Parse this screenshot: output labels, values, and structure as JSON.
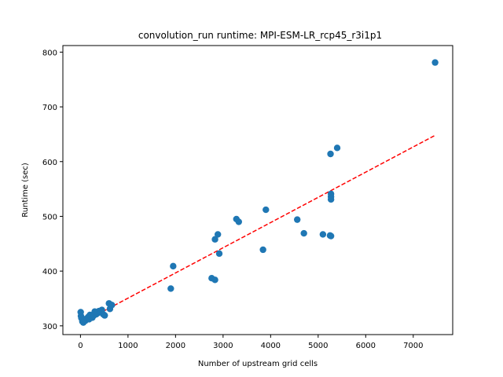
{
  "chart_data": {
    "type": "scatter",
    "title": "convolution_run runtime: MPI-ESM-LR_rcp45_r3i1p1",
    "xlabel": "Number of upstream grid cells",
    "ylabel": "Runtime (sec)",
    "xlim": [
      -370,
      7830
    ],
    "ylim": [
      284,
      812
    ],
    "xticks": [
      0,
      1000,
      2000,
      3000,
      4000,
      5000,
      6000,
      7000
    ],
    "yticks": [
      300,
      400,
      500,
      600,
      700,
      800
    ],
    "grid": false,
    "colors": {
      "points": "#1f77b4",
      "fit": "#ff0000"
    },
    "points": [
      {
        "x": 5,
        "y": 325
      },
      {
        "x": 10,
        "y": 318
      },
      {
        "x": 20,
        "y": 314
      },
      {
        "x": 40,
        "y": 308
      },
      {
        "x": 60,
        "y": 306
      },
      {
        "x": 80,
        "y": 312
      },
      {
        "x": 100,
        "y": 309
      },
      {
        "x": 130,
        "y": 313
      },
      {
        "x": 160,
        "y": 316
      },
      {
        "x": 180,
        "y": 312
      },
      {
        "x": 200,
        "y": 320
      },
      {
        "x": 220,
        "y": 317
      },
      {
        "x": 250,
        "y": 315
      },
      {
        "x": 280,
        "y": 319
      },
      {
        "x": 300,
        "y": 326
      },
      {
        "x": 330,
        "y": 321
      },
      {
        "x": 360,
        "y": 323
      },
      {
        "x": 390,
        "y": 327
      },
      {
        "x": 420,
        "y": 325
      },
      {
        "x": 450,
        "y": 329
      },
      {
        "x": 480,
        "y": 321
      },
      {
        "x": 510,
        "y": 319
      },
      {
        "x": 600,
        "y": 341
      },
      {
        "x": 620,
        "y": 331
      },
      {
        "x": 660,
        "y": 338
      },
      {
        "x": 1900,
        "y": 368
      },
      {
        "x": 1950,
        "y": 409
      },
      {
        "x": 2760,
        "y": 387
      },
      {
        "x": 2830,
        "y": 384
      },
      {
        "x": 2830,
        "y": 458
      },
      {
        "x": 2890,
        "y": 467
      },
      {
        "x": 2920,
        "y": 432
      },
      {
        "x": 3280,
        "y": 495
      },
      {
        "x": 3330,
        "y": 490
      },
      {
        "x": 3840,
        "y": 439
      },
      {
        "x": 3900,
        "y": 512
      },
      {
        "x": 4560,
        "y": 494
      },
      {
        "x": 4700,
        "y": 469
      },
      {
        "x": 5100,
        "y": 467
      },
      {
        "x": 5250,
        "y": 465
      },
      {
        "x": 5270,
        "y": 464
      },
      {
        "x": 5260,
        "y": 614
      },
      {
        "x": 5270,
        "y": 541
      },
      {
        "x": 5270,
        "y": 536
      },
      {
        "x": 5270,
        "y": 531
      },
      {
        "x": 5400,
        "y": 625
      },
      {
        "x": 7460,
        "y": 781
      }
    ],
    "fit_line": {
      "x": [
        0,
        7460
      ],
      "y": [
        304.5,
        648
      ]
    }
  }
}
